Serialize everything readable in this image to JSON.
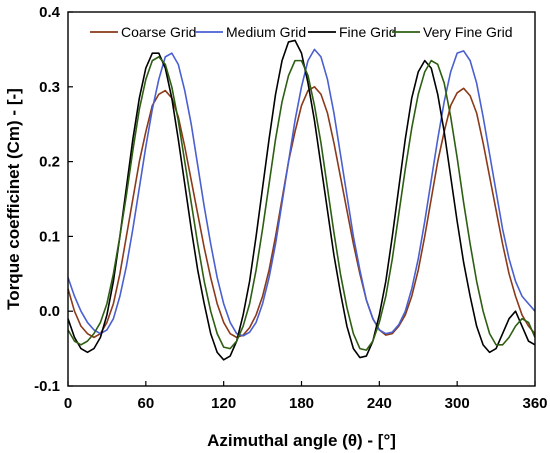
{
  "chart_data": {
    "type": "line",
    "title": "",
    "xlabel": "Azimuthal angle (θ) - [°]",
    "ylabel": "Torque coefficinet (Cm) - [-]",
    "xlim": [
      0,
      360
    ],
    "ylim": [
      -0.1,
      0.4
    ],
    "xticks": [
      0,
      60,
      120,
      180,
      240,
      300,
      360
    ],
    "yticks": [
      -0.1,
      0.0,
      0.1,
      0.2,
      0.3,
      0.4
    ],
    "ytick_labels": [
      "-0.1",
      "0.0",
      "0.1",
      "0.2",
      "0.3",
      "0.4"
    ],
    "grid": false,
    "legend_position": "top",
    "series": [
      {
        "name": "Coarse Grid",
        "color": "#8B3A1A",
        "x": [
          0,
          5,
          10,
          15,
          20,
          25,
          30,
          35,
          40,
          45,
          50,
          55,
          60,
          65,
          70,
          75,
          80,
          85,
          90,
          95,
          100,
          105,
          110,
          115,
          120,
          125,
          130,
          135,
          140,
          145,
          150,
          155,
          160,
          165,
          170,
          175,
          180,
          185,
          190,
          195,
          200,
          205,
          210,
          215,
          220,
          225,
          230,
          235,
          240,
          245,
          250,
          255,
          260,
          265,
          270,
          275,
          280,
          285,
          290,
          295,
          300,
          305,
          310,
          315,
          320,
          325,
          330,
          335,
          340,
          345,
          350,
          355,
          360
        ],
        "values": [
          0.03,
          0.0,
          -0.02,
          -0.03,
          -0.035,
          -0.03,
          -0.015,
          0.01,
          0.05,
          0.1,
          0.15,
          0.2,
          0.24,
          0.275,
          0.29,
          0.295,
          0.285,
          0.26,
          0.22,
          0.175,
          0.13,
          0.085,
          0.045,
          0.01,
          -0.015,
          -0.03,
          -0.035,
          -0.032,
          -0.022,
          -0.005,
          0.02,
          0.055,
          0.1,
          0.15,
          0.2,
          0.24,
          0.275,
          0.295,
          0.3,
          0.29,
          0.265,
          0.225,
          0.18,
          0.135,
          0.09,
          0.05,
          0.015,
          -0.01,
          -0.025,
          -0.032,
          -0.03,
          -0.02,
          -0.005,
          0.02,
          0.055,
          0.1,
          0.15,
          0.2,
          0.24,
          0.275,
          0.292,
          0.298,
          0.288,
          0.265,
          0.225,
          0.18,
          0.135,
          0.09,
          0.05,
          0.02,
          -0.005,
          -0.02,
          -0.03
        ]
      },
      {
        "name": "Medium Grid",
        "color": "#4A5FD0",
        "x": [
          0,
          5,
          10,
          15,
          20,
          25,
          30,
          35,
          40,
          45,
          50,
          55,
          60,
          65,
          70,
          75,
          80,
          85,
          90,
          95,
          100,
          105,
          110,
          115,
          120,
          125,
          130,
          135,
          140,
          145,
          150,
          155,
          160,
          165,
          170,
          175,
          180,
          185,
          190,
          195,
          200,
          205,
          210,
          215,
          220,
          225,
          230,
          235,
          240,
          245,
          250,
          255,
          260,
          265,
          270,
          275,
          280,
          285,
          290,
          295,
          300,
          305,
          310,
          315,
          320,
          325,
          330,
          335,
          340,
          345,
          350,
          355,
          360
        ],
        "values": [
          0.045,
          0.02,
          0.0,
          -0.015,
          -0.025,
          -0.03,
          -0.025,
          -0.01,
          0.02,
          0.06,
          0.11,
          0.165,
          0.22,
          0.27,
          0.31,
          0.34,
          0.345,
          0.33,
          0.295,
          0.25,
          0.195,
          0.14,
          0.09,
          0.045,
          0.01,
          -0.015,
          -0.03,
          -0.033,
          -0.028,
          -0.015,
          0.01,
          0.045,
          0.09,
          0.145,
          0.2,
          0.255,
          0.3,
          0.335,
          0.35,
          0.34,
          0.31,
          0.265,
          0.21,
          0.155,
          0.1,
          0.055,
          0.015,
          -0.01,
          -0.025,
          -0.03,
          -0.028,
          -0.018,
          0.0,
          0.03,
          0.07,
          0.12,
          0.175,
          0.23,
          0.28,
          0.32,
          0.345,
          0.348,
          0.335,
          0.305,
          0.26,
          0.21,
          0.16,
          0.11,
          0.07,
          0.04,
          0.02,
          0.01,
          0.0
        ]
      },
      {
        "name": "Fine Grid",
        "color": "#000000",
        "x": [
          0,
          5,
          10,
          15,
          20,
          25,
          30,
          35,
          40,
          45,
          50,
          55,
          60,
          65,
          70,
          75,
          80,
          85,
          90,
          95,
          100,
          105,
          110,
          115,
          120,
          125,
          130,
          135,
          140,
          145,
          150,
          155,
          160,
          165,
          170,
          175,
          180,
          185,
          190,
          195,
          200,
          205,
          210,
          215,
          220,
          225,
          230,
          235,
          240,
          245,
          250,
          255,
          260,
          265,
          270,
          275,
          280,
          285,
          290,
          295,
          300,
          305,
          310,
          315,
          320,
          325,
          330,
          335,
          340,
          345,
          350,
          355,
          360
        ],
        "values": [
          -0.01,
          -0.035,
          -0.05,
          -0.055,
          -0.05,
          -0.035,
          -0.005,
          0.04,
          0.1,
          0.165,
          0.23,
          0.285,
          0.325,
          0.345,
          0.345,
          0.325,
          0.285,
          0.23,
          0.17,
          0.11,
          0.055,
          0.01,
          -0.03,
          -0.055,
          -0.065,
          -0.06,
          -0.04,
          -0.005,
          0.04,
          0.1,
          0.165,
          0.23,
          0.29,
          0.335,
          0.36,
          0.362,
          0.345,
          0.305,
          0.255,
          0.195,
          0.135,
          0.075,
          0.025,
          -0.02,
          -0.05,
          -0.062,
          -0.06,
          -0.04,
          -0.005,
          0.04,
          0.1,
          0.165,
          0.23,
          0.285,
          0.32,
          0.335,
          0.325,
          0.29,
          0.24,
          0.18,
          0.12,
          0.065,
          0.02,
          -0.02,
          -0.045,
          -0.055,
          -0.05,
          -0.03,
          -0.01,
          0.0,
          -0.02,
          -0.04,
          -0.045
        ]
      },
      {
        "name": "Very Fine Grid",
        "color": "#2E5E12",
        "x": [
          0,
          5,
          10,
          15,
          20,
          25,
          30,
          35,
          40,
          45,
          50,
          55,
          60,
          65,
          70,
          75,
          80,
          85,
          90,
          95,
          100,
          105,
          110,
          115,
          120,
          125,
          130,
          135,
          140,
          145,
          150,
          155,
          160,
          165,
          170,
          175,
          180,
          185,
          190,
          195,
          200,
          205,
          210,
          215,
          220,
          225,
          230,
          235,
          240,
          245,
          250,
          255,
          260,
          265,
          270,
          275,
          280,
          285,
          290,
          295,
          300,
          305,
          310,
          315,
          320,
          325,
          330,
          335,
          340,
          345,
          350,
          355,
          360
        ],
        "values": [
          -0.025,
          -0.04,
          -0.045,
          -0.04,
          -0.03,
          -0.015,
          0.01,
          0.05,
          0.1,
          0.155,
          0.215,
          0.27,
          0.31,
          0.335,
          0.34,
          0.33,
          0.3,
          0.255,
          0.2,
          0.145,
          0.09,
          0.04,
          0.0,
          -0.03,
          -0.048,
          -0.05,
          -0.04,
          -0.02,
          0.01,
          0.055,
          0.11,
          0.17,
          0.23,
          0.28,
          0.315,
          0.335,
          0.335,
          0.315,
          0.275,
          0.225,
          0.165,
          0.105,
          0.05,
          0.005,
          -0.03,
          -0.05,
          -0.052,
          -0.04,
          -0.015,
          0.02,
          0.07,
          0.13,
          0.19,
          0.245,
          0.29,
          0.32,
          0.335,
          0.33,
          0.305,
          0.26,
          0.205,
          0.145,
          0.09,
          0.04,
          0.0,
          -0.03,
          -0.045,
          -0.045,
          -0.035,
          -0.02,
          -0.01,
          -0.015,
          -0.035
        ]
      }
    ]
  }
}
